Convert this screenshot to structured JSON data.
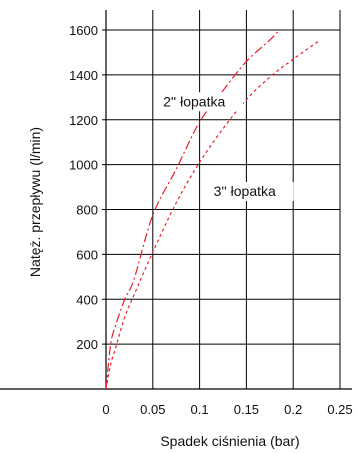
{
  "chart_data": {
    "type": "line",
    "xlabel": "Spadek ciśnienia (bar)",
    "ylabel": "Natęż. przepływu (l/min)",
    "xlim": [
      0,
      0.25
    ],
    "ylim": [
      0,
      1600
    ],
    "xticks": [
      "0",
      "0.05",
      "0.1",
      "0.15",
      "0.2",
      "0.25"
    ],
    "yticks": [
      "200",
      "400",
      "600",
      "800",
      "1000",
      "1200",
      "1400",
      "1600"
    ],
    "grid": true,
    "series": [
      {
        "name": "2'' łopatka",
        "color": "#e8202a",
        "dash": "dash-dot",
        "x": [
          0,
          0.005,
          0.01,
          0.02,
          0.03,
          0.05,
          0.075,
          0.1,
          0.125,
          0.15,
          0.175,
          0.185
        ],
        "y": [
          0,
          200,
          280,
          400,
          490,
          775,
          980,
          1190,
          1330,
          1460,
          1555,
          1600
        ]
      },
      {
        "name": "3'' łopatka",
        "color": "#e8202a",
        "dash": "dotted",
        "x": [
          0,
          0.005,
          0.01,
          0.02,
          0.03,
          0.05,
          0.075,
          0.1,
          0.125,
          0.15,
          0.175,
          0.2,
          0.227
        ],
        "y": [
          0,
          110,
          180,
          320,
          420,
          610,
          830,
          1010,
          1160,
          1290,
          1390,
          1470,
          1550
        ]
      }
    ],
    "annotations": [
      {
        "text": "2'' łopatka",
        "x": 0.061,
        "y": 1260
      },
      {
        "text": "3'' łopatka",
        "x": 0.115,
        "y": 860
      }
    ]
  }
}
